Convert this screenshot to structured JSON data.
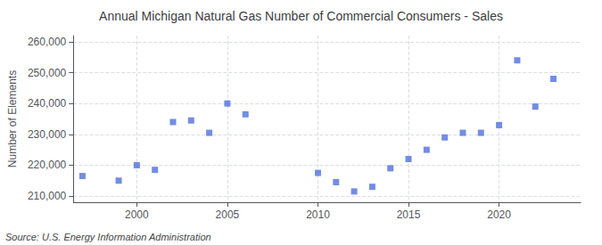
{
  "chart_data": {
    "type": "scatter",
    "title": "Annual Michigan Natural Gas Number of Commercial Consumers - Sales",
    "ylabel": "Number of Elements",
    "annotations": [
      "Source: U.S. Energy Information Administration"
    ],
    "marker": "square",
    "x": [
      1997,
      1999,
      2000,
      2001,
      2002,
      2003,
      2004,
      2005,
      2006,
      2010,
      2011,
      2012,
      2013,
      2014,
      2015,
      2016,
      2017,
      2018,
      2019,
      2020,
      2021,
      2022,
      2023
    ],
    "values": [
      216500,
      215000,
      220000,
      218500,
      234000,
      234500,
      230500,
      240000,
      236500,
      217500,
      214500,
      211500,
      213000,
      219000,
      222000,
      225000,
      229000,
      230500,
      230500,
      233000,
      254000,
      239000,
      248000
    ],
    "xlim": [
      1996.5,
      2024.5
    ],
    "xticks": [
      2000,
      2005,
      2010,
      2015,
      2020
    ],
    "ylim": [
      208000,
      262000
    ],
    "yticks": [
      {
        "value": 210000,
        "label": "210,000"
      },
      {
        "value": 220000,
        "label": "220,000"
      },
      {
        "value": 230000,
        "label": "230,000"
      },
      {
        "value": 240000,
        "label": "240,000"
      },
      {
        "value": 250000,
        "label": "250,000"
      },
      {
        "value": 260000,
        "label": "260,000"
      }
    ],
    "grid": true
  }
}
